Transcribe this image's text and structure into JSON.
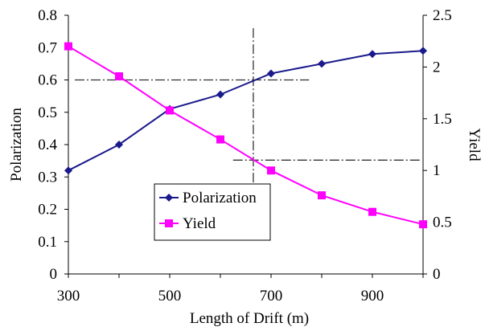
{
  "chart_data": {
    "type": "line",
    "xlabel": "Length of Drift (m)",
    "ylabel_left": "Polarization",
    "ylabel_right": "Yield",
    "x_ticks": [
      "300",
      "500",
      "700",
      "900"
    ],
    "xlim": [
      300,
      1000
    ],
    "ylim_left": [
      0,
      0.8
    ],
    "ylim_right": [
      0,
      2.5
    ],
    "y_ticks_left": [
      "0",
      "0.1",
      "0.2",
      "0.3",
      "0.4",
      "0.5",
      "0.6",
      "0.7",
      "0.8"
    ],
    "y_ticks_right": [
      "0",
      "0.5",
      "1",
      "1.5",
      "2",
      "2.5"
    ],
    "grid": false,
    "legend_position": "lower-left",
    "series": [
      {
        "name": "Polarization",
        "axis": "left",
        "color": "#1a1a8c",
        "marker": "diamond",
        "x": [
          300,
          400,
          500,
          600,
          700,
          800,
          900,
          1000
        ],
        "values": [
          0.32,
          0.4,
          0.51,
          0.555,
          0.62,
          0.65,
          0.68,
          0.69
        ]
      },
      {
        "name": "Yield",
        "axis": "right",
        "color": "#ff00ff",
        "marker": "square",
        "x": [
          300,
          400,
          500,
          600,
          700,
          800,
          900,
          1000
        ],
        "values": [
          2.2,
          1.91,
          1.58,
          1.3,
          1.0,
          0.76,
          0.6,
          0.48
        ]
      }
    ],
    "reference_lines": {
      "polarization_level": 0.6,
      "yield_level": 1.1,
      "drift_length": 665
    }
  }
}
